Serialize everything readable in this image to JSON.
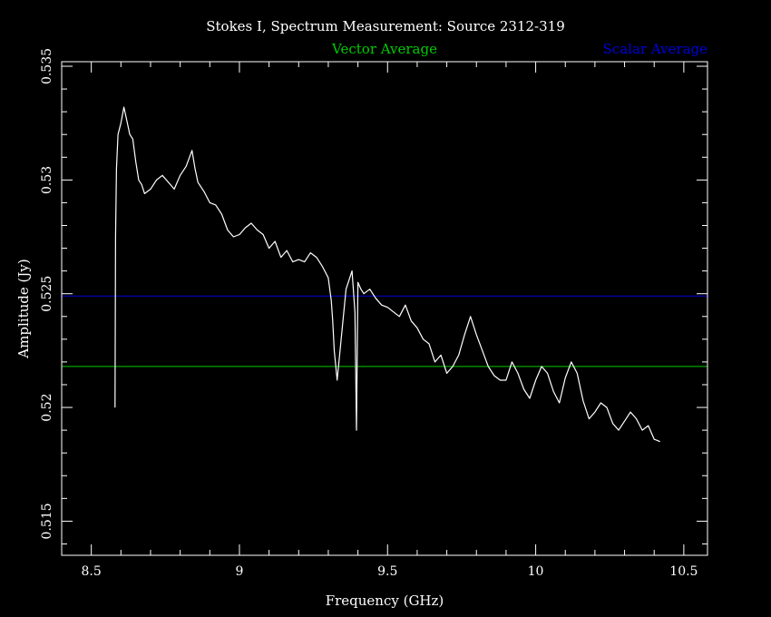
{
  "chart_data": {
    "type": "line",
    "title": "Stokes I, Spectrum Measurement: Source 2312-319",
    "xlabel": "Frequency (GHz)",
    "ylabel": "Amplitude (Jy)",
    "xlim": [
      8.4,
      10.58
    ],
    "ylim": [
      0.5135,
      0.5352
    ],
    "xticks": [
      8.5,
      9,
      9.5,
      10,
      10.5
    ],
    "xtick_labels": [
      "8.5",
      "9",
      "9.5",
      "10",
      "10.5"
    ],
    "yticks": [
      0.515,
      0.52,
      0.525,
      0.53,
      0.535
    ],
    "ytick_labels": [
      "0.515",
      "0.52",
      "0.525",
      "0.53",
      "0.535"
    ],
    "grid": false,
    "colors": {
      "background": "#000000",
      "frame": "#ffffff",
      "text": "#ffffff",
      "spectrum": "#ffffff",
      "vector_average": "#00cc00",
      "scalar_average": "#0000dd"
    },
    "series": [
      {
        "name": "",
        "x": [
          8.58,
          8.582,
          8.585,
          8.59,
          8.6,
          8.61,
          8.62,
          8.63,
          8.64,
          8.65,
          8.66,
          8.67,
          8.68,
          8.7,
          8.72,
          8.74,
          8.76,
          8.78,
          8.8,
          8.82,
          8.84,
          8.85,
          8.86,
          8.88,
          8.9,
          8.92,
          8.94,
          8.96,
          8.98,
          9.0,
          9.02,
          9.04,
          9.06,
          9.08,
          9.1,
          9.12,
          9.14,
          9.16,
          9.18,
          9.2,
          9.22,
          9.24,
          9.26,
          9.28,
          9.3,
          9.31,
          9.315,
          9.32,
          9.33,
          9.36,
          9.38,
          9.39,
          9.395,
          9.4,
          9.41,
          9.42,
          9.44,
          9.46,
          9.48,
          9.5,
          9.52,
          9.54,
          9.56,
          9.58,
          9.6,
          9.62,
          9.64,
          9.66,
          9.68,
          9.7,
          9.72,
          9.74,
          9.76,
          9.78,
          9.8,
          9.82,
          9.84,
          9.86,
          9.88,
          9.9,
          9.92,
          9.94,
          9.96,
          9.98,
          10.0,
          10.02,
          10.04,
          10.06,
          10.08,
          10.1,
          10.12,
          10.14,
          10.16,
          10.18,
          10.2,
          10.22,
          10.24,
          10.26,
          10.28,
          10.3,
          10.32,
          10.34,
          10.36,
          10.38,
          10.4,
          10.42
        ],
        "y": [
          0.52,
          0.5275,
          0.5305,
          0.532,
          0.5325,
          0.5332,
          0.5326,
          0.532,
          0.5318,
          0.5308,
          0.53,
          0.5298,
          0.5294,
          0.5296,
          0.53,
          0.5302,
          0.5299,
          0.5296,
          0.5302,
          0.5306,
          0.5313,
          0.5305,
          0.5299,
          0.5295,
          0.529,
          0.5289,
          0.5285,
          0.5278,
          0.5275,
          0.5276,
          0.5279,
          0.5281,
          0.5278,
          0.5276,
          0.527,
          0.5273,
          0.5266,
          0.5269,
          0.5264,
          0.5265,
          0.5264,
          0.5268,
          0.5266,
          0.5262,
          0.5257,
          0.5247,
          0.5238,
          0.5225,
          0.5212,
          0.5252,
          0.526,
          0.5242,
          0.519,
          0.5255,
          0.5252,
          0.525,
          0.5252,
          0.5248,
          0.5245,
          0.5244,
          0.5242,
          0.524,
          0.5245,
          0.5238,
          0.5235,
          0.523,
          0.5228,
          0.522,
          0.5223,
          0.5215,
          0.5218,
          0.5223,
          0.5232,
          0.524,
          0.5232,
          0.5225,
          0.5218,
          0.5214,
          0.5212,
          0.5212,
          0.522,
          0.5215,
          0.5208,
          0.5204,
          0.5212,
          0.5218,
          0.5215,
          0.5207,
          0.5202,
          0.5213,
          0.522,
          0.5215,
          0.5203,
          0.5195,
          0.5198,
          0.5202,
          0.52,
          0.5193,
          0.519,
          0.5194,
          0.5198,
          0.5195,
          0.519,
          0.5192,
          0.5186,
          0.5185
        ]
      }
    ],
    "reference_lines": [
      {
        "name": "Vector Average",
        "y": 0.5218
      },
      {
        "name": "Scalar Average",
        "y": 0.5249
      }
    ]
  }
}
